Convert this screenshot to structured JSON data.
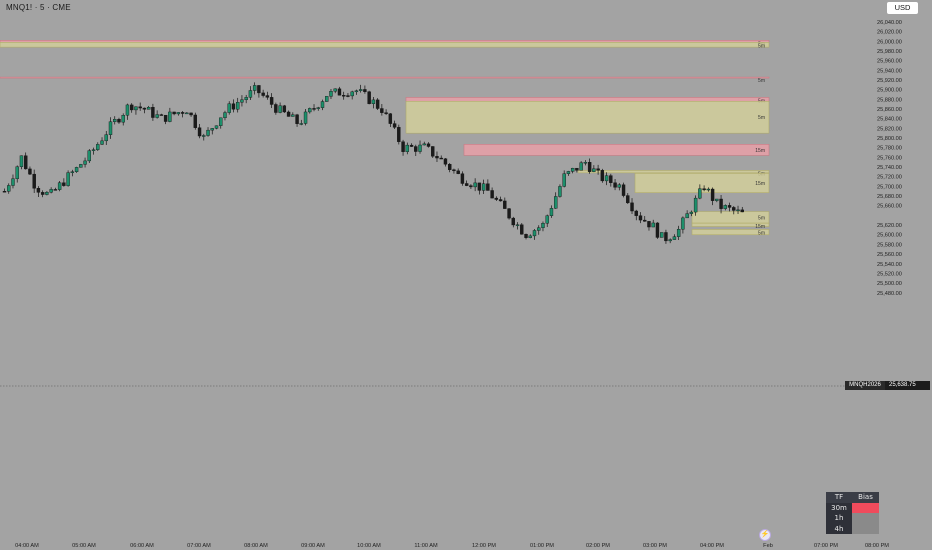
{
  "header": {
    "symbol": "MNQ1! · 5 · CME",
    "currency": "USD"
  },
  "price_axis": {
    "labels": [
      "26,040.00",
      "26,020.00",
      "26,000.00",
      "25,980.00",
      "25,960.00",
      "25,940.00",
      "25,920.00",
      "25,900.00",
      "25,880.00",
      "25,860.00",
      "25,840.00",
      "25,820.00",
      "25,800.00",
      "25,780.00",
      "25,760.00",
      "25,740.00",
      "25,720.00",
      "25,700.00",
      "25,680.00",
      "25,660.00",
      "25,620.00",
      "25,600.00",
      "25,580.00",
      "25,560.00",
      "25,540.00",
      "25,520.00",
      "25,500.00",
      "25,480.00"
    ],
    "last_price_ticker": "MNQH2026",
    "last_price": "25,638.75"
  },
  "time_axis": {
    "labels": [
      "04:00 AM",
      "05:00 AM",
      "06:00 AM",
      "07:00 AM",
      "08:00 AM",
      "09:00 AM",
      "10:00 AM",
      "11:00 AM",
      "12:00 PM",
      "01:00 PM",
      "02:00 PM",
      "03:00 PM",
      "04:00 PM",
      "Feb",
      "07:00 PM",
      "08:00 PM"
    ]
  },
  "zones": [
    {
      "label": "5m",
      "kind": "supply",
      "top": 26002,
      "bottom": 25998,
      "start": "04:00 AM",
      "end": "Feb"
    },
    {
      "label": "5m",
      "kind": "demand",
      "top": 25998,
      "bottom": 25988,
      "start": "04:00 AM",
      "end": "Feb"
    },
    {
      "label": "5m",
      "kind": "supply",
      "top": 25926,
      "bottom": 25925,
      "start": "04:00 AM",
      "end": "Feb"
    },
    {
      "label": "5m",
      "kind": "supply",
      "top": 25884,
      "bottom": 25876,
      "start": "11:00 AM",
      "end": "Feb"
    },
    {
      "label": "5m",
      "kind": "demand",
      "top": 25876,
      "bottom": 25810,
      "start": "11:00 AM",
      "end": "Feb"
    },
    {
      "label": "15m",
      "kind": "supply",
      "top": 25787,
      "bottom": 25764,
      "start": "12:00 PM",
      "end": "Feb"
    },
    {
      "label": "5m",
      "kind": "demand",
      "top": 25733,
      "bottom": 25728,
      "start": "02:00 PM",
      "end": "Feb"
    },
    {
      "label": "15m",
      "kind": "demand",
      "top": 25727,
      "bottom": 25687,
      "start": "03:00 PM",
      "end": "Feb"
    },
    {
      "label": "5m",
      "kind": "demand",
      "top": 25648,
      "bottom": 25624,
      "start": "04:00 PM",
      "end": "Feb"
    },
    {
      "label": "15m",
      "kind": "demand",
      "top": 25624,
      "bottom": 25617,
      "start": "04:00 PM",
      "end": "Feb"
    },
    {
      "label": "5m",
      "kind": "demand",
      "top": 25611,
      "bottom": 25600,
      "start": "04:00 PM",
      "end": "Feb"
    }
  ],
  "chart_data": {
    "type": "candlestick",
    "series": [
      {
        "values": []
      }
    ],
    "up_color": "#1d8f6b",
    "down_color": "#1b1b1b",
    "supply_color": "#e9a0a8",
    "demand_color": "#d8d49a"
  },
  "bias_table": {
    "headers": [
      "TF",
      "Bias"
    ],
    "rows": [
      {
        "tf": "30m",
        "bias": "bearish"
      },
      {
        "tf": "1h",
        "bias": "neutral"
      },
      {
        "tf": "4h",
        "bias": "neutral"
      }
    ],
    "colors": {
      "bearish": "#f04b5c",
      "neutral": "#8a8a8a"
    }
  }
}
